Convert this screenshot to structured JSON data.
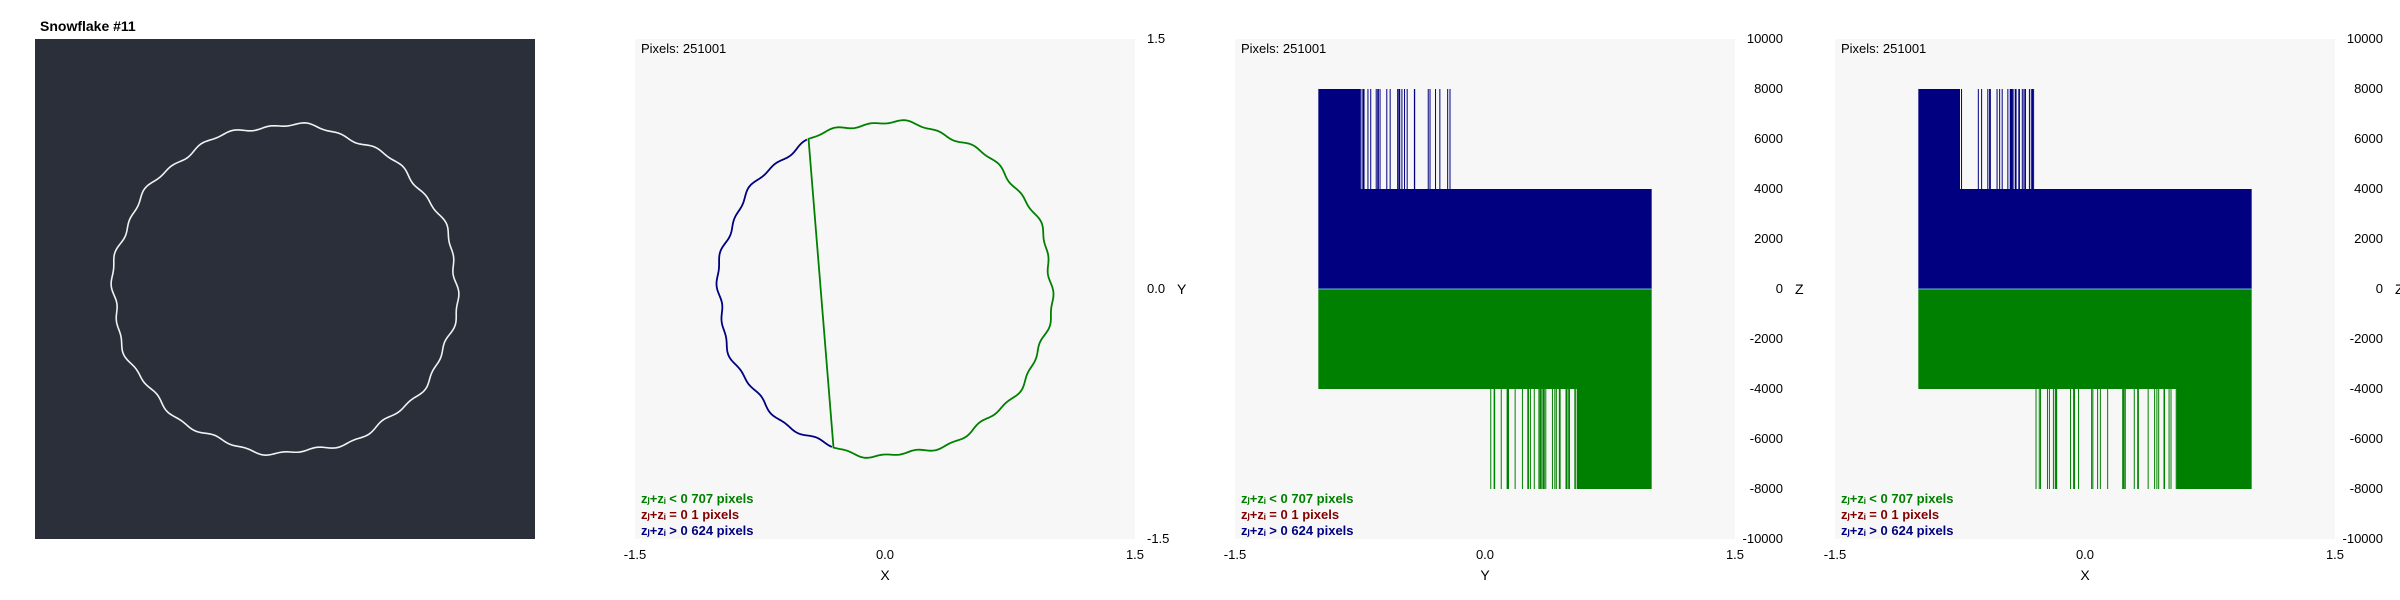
{
  "title": "Snowflake #11",
  "colors": {
    "negative": "#008000",
    "zero": "#800000",
    "positive": "#000080",
    "panel_bg": "#f7f7f7",
    "dark_bg": "#2a2f3a"
  },
  "legend": {
    "neg": "zⱼ+zᵢ < 0  707 pixels",
    "zero": "zⱼ+zᵢ = 0  1 pixels",
    "pos": "zⱼ+zᵢ > 0  624 pixels"
  },
  "chart_data": [
    {
      "type": "line",
      "name": "xy-view",
      "pixels_label": "Pixels: 251001",
      "xlabel": "X",
      "ylabel": "Y",
      "xlim": [
        -1.5,
        1.5
      ],
      "ylim": [
        -1.5,
        1.5
      ],
      "x_ticks": [
        "-1.5",
        "0.0",
        "1.5"
      ],
      "y_ticks": [
        "1.5",
        "0.0",
        "-1.5"
      ],
      "shape": "closed wavy loop, radius about 1.0"
    },
    {
      "type": "bar",
      "name": "yz-view",
      "pixels_label": "Pixels: 251001",
      "xlabel": "Y",
      "ylabel": "Z",
      "xlim": [
        -1.5,
        1.5
      ],
      "ylim": [
        -10000,
        10000
      ],
      "x_ticks": [
        "-1.5",
        "0.0",
        "1.5"
      ],
      "y_ticks": [
        "10000",
        "8000",
        "6000",
        "4000",
        "2000",
        "0",
        "-2000",
        "-4000",
        "-6000",
        "-8000",
        "-10000"
      ],
      "positive_block": {
        "x": [
          -1.0,
          1.0
        ],
        "z": [
          0,
          4000
        ]
      },
      "positive_spikes": {
        "x": [
          -1.0,
          -0.75
        ],
        "z_top": 8000
      },
      "negative_block": {
        "x": [
          -1.0,
          1.0
        ],
        "z": [
          -4000,
          0
        ]
      },
      "negative_spikes": {
        "x": [
          0.0,
          1.0
        ],
        "z_bottom": -8000
      }
    },
    {
      "type": "bar",
      "name": "xz-view",
      "pixels_label": "Pixels: 251001",
      "xlabel": "X",
      "ylabel": "Z",
      "xlim": [
        -1.5,
        1.5
      ],
      "ylim": [
        -10000,
        10000
      ],
      "x_ticks": [
        "-1.5",
        "0.0",
        "1.5"
      ],
      "y_ticks": [
        "10000",
        "8000",
        "6000",
        "4000",
        "2000",
        "0",
        "-2000",
        "-4000",
        "-6000",
        "-8000",
        "-10000"
      ],
      "positive_block": {
        "x": [
          -1.0,
          1.0
        ],
        "z": [
          0,
          4000
        ]
      },
      "positive_spikes": {
        "x": [
          -1.0,
          -0.75
        ],
        "z_top": 8000
      },
      "negative_block": {
        "x": [
          -1.0,
          1.0
        ],
        "z": [
          -4000,
          0
        ]
      },
      "negative_spikes": {
        "x": [
          0.0,
          1.0
        ],
        "z_bottom": -8000
      }
    }
  ]
}
